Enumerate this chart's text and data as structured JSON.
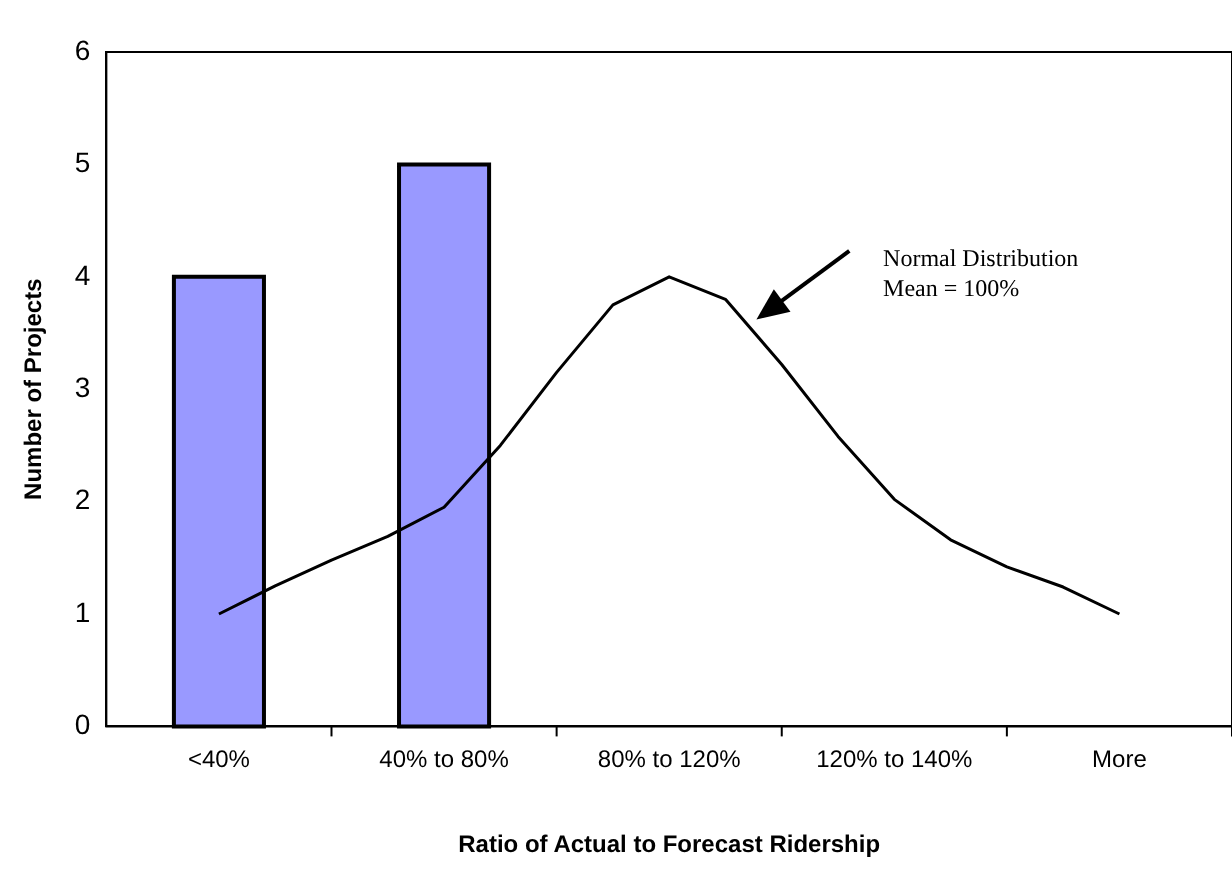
{
  "chart_data": {
    "type": "bar",
    "xlabel": "Ratio of Actual to Forecast Ridership",
    "ylabel": "Number of Projects",
    "categories": [
      "<40%",
      null,
      null,
      null,
      "40% to 80%",
      null,
      null,
      null,
      "80% to 120%",
      null,
      null,
      null,
      "120% to 140%",
      null,
      null,
      null,
      "More"
    ],
    "series": [
      {
        "color": "#9999ff",
        "values": [
          4,
          null,
          null,
          null,
          5,
          null,
          null,
          null,
          0,
          null,
          null,
          null,
          0,
          null,
          null,
          null,
          0
        ]
      },
      {
        "type": "line",
        "color": "#000000",
        "values": [
          1.0,
          1.25,
          1.48,
          1.69,
          1.95,
          2.5,
          3.15,
          3.75,
          4.0,
          3.8,
          3.22,
          2.58,
          2.02,
          1.66,
          1.42,
          1.24,
          1.0
        ]
      }
    ],
    "ylim": [
      0,
      6
    ],
    "yticks": [
      0,
      1,
      2,
      3,
      4,
      5,
      6
    ],
    "annotations": [
      "Normal Distribution\nMean = 100%"
    ],
    "grid": false,
    "legend": false,
    "marker": "none"
  }
}
